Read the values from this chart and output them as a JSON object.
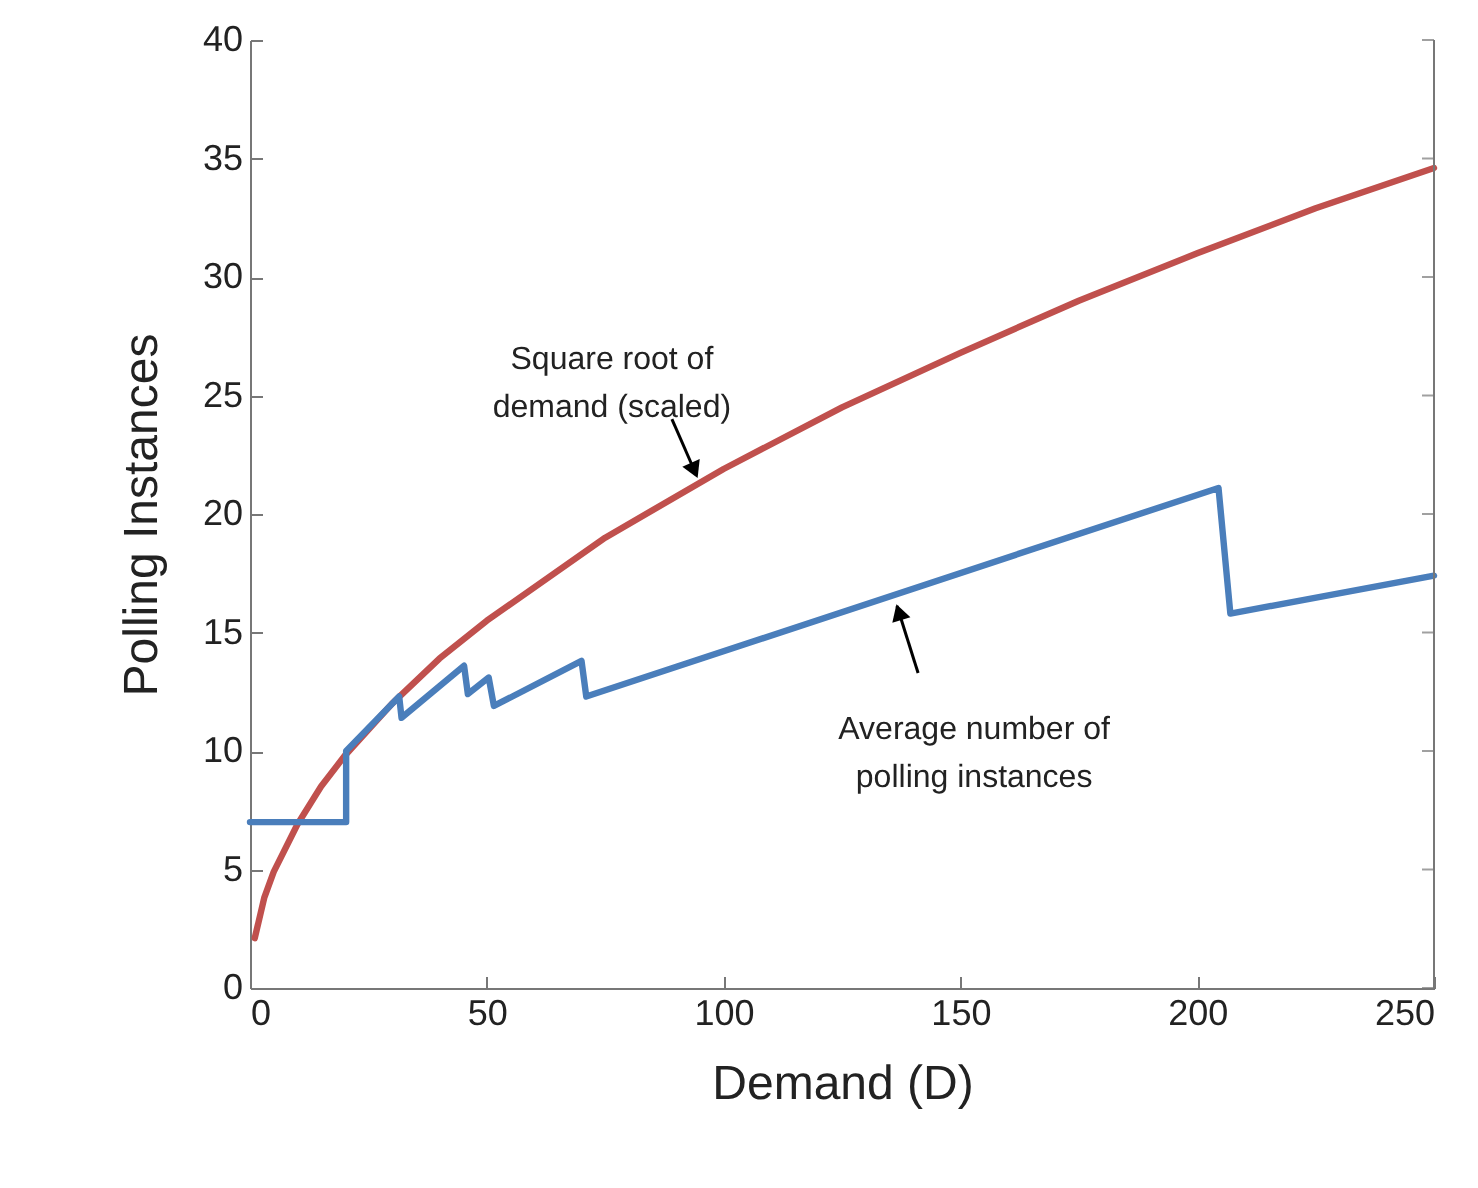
{
  "chart_data": {
    "type": "line",
    "xlabel": "Demand (D)",
    "ylabel": "Polling Instances",
    "xlim": [
      0,
      250
    ],
    "ylim": [
      0,
      40
    ],
    "xticks": [
      0,
      50,
      100,
      150,
      200,
      250
    ],
    "yticks": [
      0,
      5,
      10,
      15,
      20,
      25,
      30,
      35,
      40
    ],
    "grid": false,
    "marker": "none",
    "line_style": "solid",
    "series": [
      {
        "color": "#c0504d",
        "x": [
          1,
          3,
          5,
          10,
          15,
          20,
          30,
          40,
          50,
          75,
          100,
          125,
          150,
          175,
          200,
          225,
          250
        ],
        "values": [
          2.1,
          3.8,
          4.9,
          6.9,
          8.5,
          9.8,
          12.0,
          13.9,
          15.5,
          19.0,
          21.9,
          24.5,
          26.8,
          29.0,
          31.0,
          32.9,
          34.6
        ]
      },
      {
        "color": "#4a7ebb",
        "x": [
          0,
          20.3,
          20.3,
          31.5,
          32,
          45.2,
          46,
          50.4,
          51.5,
          70,
          71,
          204.5,
          207,
          250
        ],
        "values": [
          7.0,
          7.0,
          10.0,
          12.3,
          11.4,
          13.6,
          12.4,
          13.1,
          11.9,
          13.8,
          12.3,
          21.1,
          15.8,
          17.4
        ]
      }
    ],
    "annotations": [
      {
        "text": "Square root of\ndemand (scaled)",
        "x": 95,
        "y": 21.3
      },
      {
        "text": "Average number of\npolling instances",
        "x": 136,
        "y": 16.5
      }
    ]
  }
}
